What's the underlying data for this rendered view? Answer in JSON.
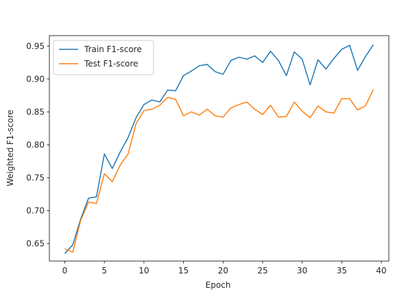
{
  "chart_data": {
    "type": "line",
    "xlabel": "Epoch",
    "ylabel": "Weighted F1-score",
    "xlim": [
      -1.95,
      40.95
    ],
    "ylim": [
      0.6235,
      0.9657
    ],
    "xticks": [
      0,
      5,
      10,
      15,
      20,
      25,
      30,
      35,
      40
    ],
    "yticks": [
      0.65,
      0.7,
      0.75,
      0.8,
      0.85,
      0.9,
      0.95
    ],
    "xtick_labels": [
      "0",
      "5",
      "10",
      "15",
      "20",
      "25",
      "30",
      "35",
      "40"
    ],
    "ytick_labels": [
      "0.65",
      "0.70",
      "0.75",
      "0.80",
      "0.85",
      "0.90",
      "0.95"
    ],
    "grid": false,
    "legend_position": "top-left",
    "x": [
      0,
      1,
      2,
      3,
      4,
      5,
      6,
      7,
      8,
      9,
      10,
      11,
      12,
      13,
      14,
      15,
      16,
      17,
      18,
      19,
      20,
      21,
      22,
      23,
      24,
      25,
      26,
      27,
      28,
      29,
      30,
      31,
      32,
      33,
      34,
      35,
      36,
      37,
      38,
      39
    ],
    "series": [
      {
        "name": "Train F1-score",
        "color": "#1f77b4",
        "values": [
          0.635,
          0.648,
          0.687,
          0.719,
          0.721,
          0.786,
          0.764,
          0.789,
          0.811,
          0.841,
          0.861,
          0.868,
          0.865,
          0.883,
          0.882,
          0.905,
          0.912,
          0.92,
          0.922,
          0.911,
          0.907,
          0.928,
          0.933,
          0.93,
          0.935,
          0.925,
          0.942,
          0.928,
          0.905,
          0.941,
          0.93,
          0.891,
          0.929,
          0.915,
          0.931,
          0.945,
          0.951,
          0.913,
          0.934,
          0.952
        ]
      },
      {
        "name": "Test F1-score",
        "color": "#ff7f0e",
        "values": [
          0.642,
          0.637,
          0.685,
          0.713,
          0.711,
          0.756,
          0.744,
          0.769,
          0.786,
          0.832,
          0.852,
          0.854,
          0.86,
          0.872,
          0.869,
          0.844,
          0.85,
          0.845,
          0.854,
          0.844,
          0.842,
          0.856,
          0.861,
          0.865,
          0.854,
          0.846,
          0.86,
          0.842,
          0.843,
          0.865,
          0.851,
          0.841,
          0.859,
          0.85,
          0.848,
          0.87,
          0.87,
          0.853,
          0.859,
          0.884
        ]
      }
    ]
  }
}
